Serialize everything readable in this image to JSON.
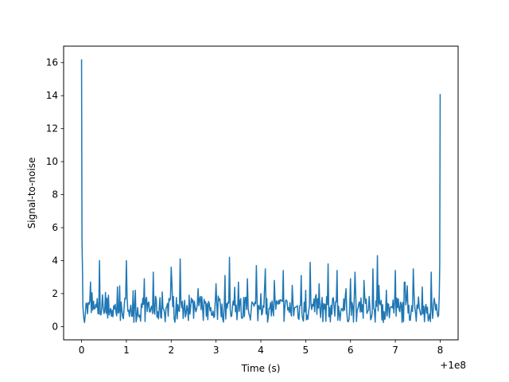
{
  "chart_data": {
    "type": "line",
    "title": "",
    "xlabel": "Time (s)",
    "ylabel": "Signal-to-noise",
    "x_offset_label": "+1e8",
    "xlim": [
      -0.4,
      8.4
    ],
    "ylim": [
      -0.8,
      17.0
    ],
    "xticks": [
      0,
      1,
      2,
      3,
      4,
      5,
      6,
      7,
      8
    ],
    "xtick_labels": [
      "0",
      "1",
      "2",
      "3",
      "4",
      "5",
      "6",
      "7",
      "8"
    ],
    "yticks": [
      0,
      2,
      4,
      6,
      8,
      10,
      12,
      14,
      16
    ],
    "ytick_labels": [
      "0",
      "2",
      "4",
      "6",
      "8",
      "10",
      "12",
      "14",
      "16"
    ],
    "grid": false,
    "legend": "none",
    "line_color": "#1f77b4",
    "series": [
      {
        "x": [
          0.0,
          0.01,
          0.02,
          0.03,
          0.05,
          0.1,
          0.2,
          0.3,
          0.4,
          0.5,
          0.6,
          0.7,
          0.8,
          0.9,
          1.0,
          1.1,
          1.2,
          1.3,
          1.4,
          1.5,
          1.6,
          1.7,
          1.8,
          1.9,
          2.0,
          2.1,
          2.2,
          2.3,
          2.4,
          2.5,
          2.6,
          2.7,
          2.8,
          2.9,
          3.0,
          3.1,
          3.2,
          3.3,
          3.4,
          3.5,
          3.6,
          3.7,
          3.8,
          3.9,
          4.0,
          4.1,
          4.2,
          4.3,
          4.4,
          4.5,
          4.6,
          4.7,
          4.8,
          4.9,
          5.0,
          5.1,
          5.2,
          5.3,
          5.4,
          5.5,
          5.6,
          5.7,
          5.8,
          5.9,
          6.0,
          6.1,
          6.2,
          6.3,
          6.4,
          6.5,
          6.6,
          6.7,
          6.8,
          6.9,
          7.0,
          7.1,
          7.2,
          7.3,
          7.4,
          7.5,
          7.6,
          7.7,
          7.8,
          7.9,
          7.95,
          7.98,
          7.99,
          8.0
        ],
        "y": [
          16.2,
          5.3,
          3.6,
          1.2,
          0.5,
          1.4,
          2.7,
          1.1,
          4.0,
          0.8,
          1.9,
          0.6,
          2.4,
          1.0,
          4.0,
          1.3,
          2.2,
          0.7,
          2.9,
          1.5,
          3.3,
          0.9,
          2.1,
          1.2,
          3.6,
          0.8,
          4.1,
          1.6,
          1.9,
          0.5,
          2.3,
          1.1,
          1.4,
          0.7,
          2.6,
          1.2,
          3.1,
          4.2,
          1.3,
          2.7,
          0.6,
          2.9,
          1.5,
          3.7,
          2.0,
          3.5,
          1.1,
          2.8,
          1.6,
          3.4,
          1.0,
          2.5,
          1.2,
          3.1,
          2.2,
          3.9,
          0.9,
          2.6,
          1.4,
          3.8,
          1.7,
          3.4,
          1.1,
          2.3,
          2.9,
          3.3,
          1.5,
          2.8,
          1.0,
          3.5,
          4.3,
          0.4,
          2.2,
          1.2,
          3.4,
          0.9,
          2.7,
          1.3,
          3.5,
          1.1,
          2.4,
          0.8,
          3.3,
          1.0,
          0.6,
          1.9,
          3.7,
          14.1
        ]
      }
    ]
  }
}
